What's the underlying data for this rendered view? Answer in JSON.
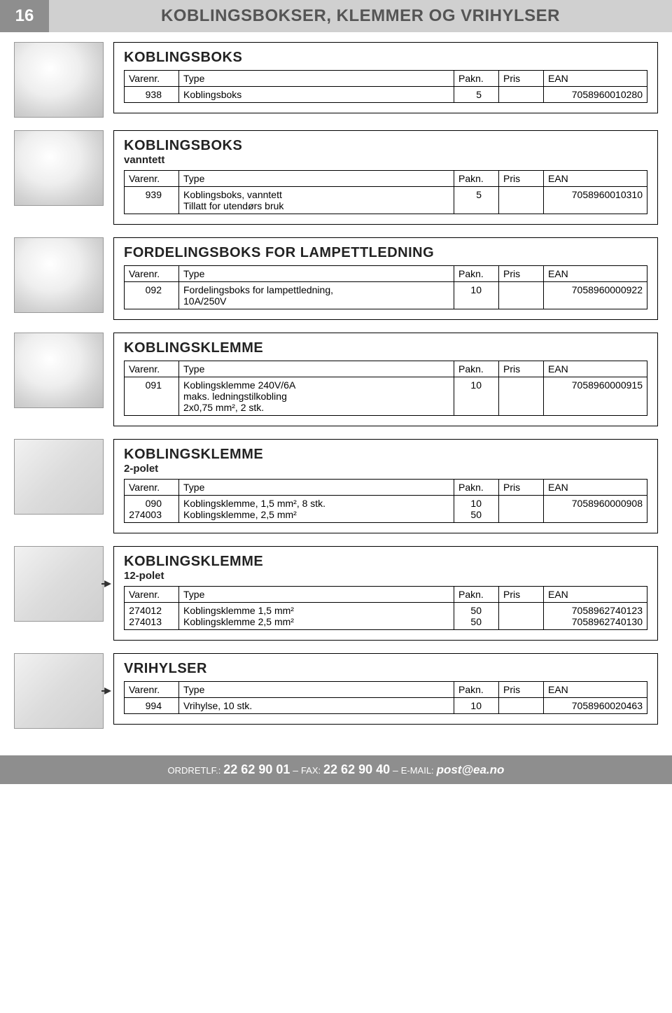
{
  "header": {
    "page_num": "16",
    "title": "KOBLINGSBOKSER, KLEMMER OG VRIHYLSER"
  },
  "columns": {
    "varenr": "Varenr.",
    "type": "Type",
    "pakn": "Pakn.",
    "pris": "Pris",
    "ean": "EAN"
  },
  "sections": [
    {
      "title": "KOBLINGSBOKS",
      "sub": "",
      "arrow": false,
      "photo": "p1",
      "rows": [
        {
          "varenr": "938",
          "type": "Koblingsboks",
          "pakn": "5",
          "pris": "",
          "ean": "7058960010280"
        }
      ]
    },
    {
      "title": "KOBLINGSBOKS",
      "sub": "vanntett",
      "arrow": false,
      "photo": "p1",
      "rows": [
        {
          "varenr": "939",
          "type": "Koblingsboks, vanntett\nTillatt for utendørs bruk",
          "pakn": "5",
          "pris": "",
          "ean": "7058960010310"
        }
      ]
    },
    {
      "title": "FORDELINGSBOKS FOR LAMPETTLEDNING",
      "sub": "",
      "arrow": false,
      "photo": "p1",
      "rows": [
        {
          "varenr": "092",
          "type": "Fordelingsboks for lampettledning,\n10A/250V",
          "pakn": "10",
          "pris": "",
          "ean": "7058960000922"
        }
      ]
    },
    {
      "title": "KOBLINGSKLEMME",
      "sub": "",
      "arrow": false,
      "photo": "p1",
      "rows": [
        {
          "varenr": "091",
          "type": "Koblingsklemme 240V/6A\nmaks. ledningstilkobling\n2x0,75 mm², 2 stk.",
          "pakn": "10",
          "pris": "",
          "ean": "7058960000915"
        }
      ]
    },
    {
      "title": "KOBLINGSKLEMME",
      "sub": "2-polet",
      "arrow": false,
      "photo": "p6",
      "rows": [
        {
          "varenr": "090",
          "type": "Koblingsklemme, 1,5 mm², 8 stk.",
          "pakn": "10",
          "pris": "",
          "ean": "7058960000908"
        },
        {
          "varenr": "274003",
          "type": "Koblingsklemme, 2,5 mm²",
          "pakn": "50",
          "pris": "",
          "ean": ""
        }
      ]
    },
    {
      "title": "KOBLINGSKLEMME",
      "sub": "12-polet",
      "arrow": true,
      "photo": "p6",
      "rows": [
        {
          "varenr": "274012",
          "type": "Koblingsklemme 1,5 mm²",
          "pakn": "50",
          "pris": "",
          "ean": "7058962740123"
        },
        {
          "varenr": "274013",
          "type": "Koblingsklemme 2,5 mm²",
          "pakn": "50",
          "pris": "",
          "ean": "7058962740130"
        }
      ]
    },
    {
      "title": "VRIHYLSER",
      "sub": "",
      "arrow": true,
      "photo": "p7",
      "rows": [
        {
          "varenr": "994",
          "type": "Vrihylse, 10 stk.",
          "pakn": "10",
          "pris": "",
          "ean": "7058960020463"
        }
      ]
    }
  ],
  "footer": {
    "ordretlf_label": "ORDRETLF.:",
    "ordretlf_num": "22 62 90 01",
    "fax_label": "FAX:",
    "fax_num": "22 62 90 40",
    "email_label": "E-MAIL:",
    "email": "post@ea.no",
    "sep": " – "
  }
}
